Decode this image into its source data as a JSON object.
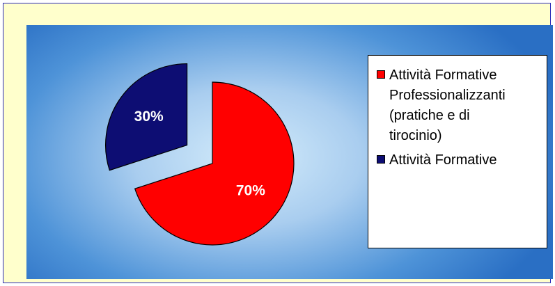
{
  "chart_data": {
    "type": "pie",
    "title": "",
    "slices": [
      {
        "name": "Attività Formative Professionalizzanti (pratiche e di tirocinio)",
        "value": 70,
        "label": "70%",
        "color": "#ff0000",
        "exploded": false
      },
      {
        "name": "Attività Formative",
        "value": 30,
        "label": "30%",
        "color": "#0d0d73",
        "exploded": true
      }
    ],
    "legend": {
      "position": "right",
      "entries": [
        {
          "text": "Attività Formative\nProfessionalizzanti\n(pratiche e di\ntirocinio)",
          "color": "#ff0000"
        },
        {
          "text": "Attività Formative",
          "color": "#0d0d73"
        }
      ]
    }
  },
  "colors": {
    "frame_background": "#ffffcc",
    "frame_border": "#2a2ab8",
    "plot_gradient_center": "#d4ecfb",
    "plot_gradient_edge": "#2a6fc4",
    "slice_outline": "#000000"
  }
}
